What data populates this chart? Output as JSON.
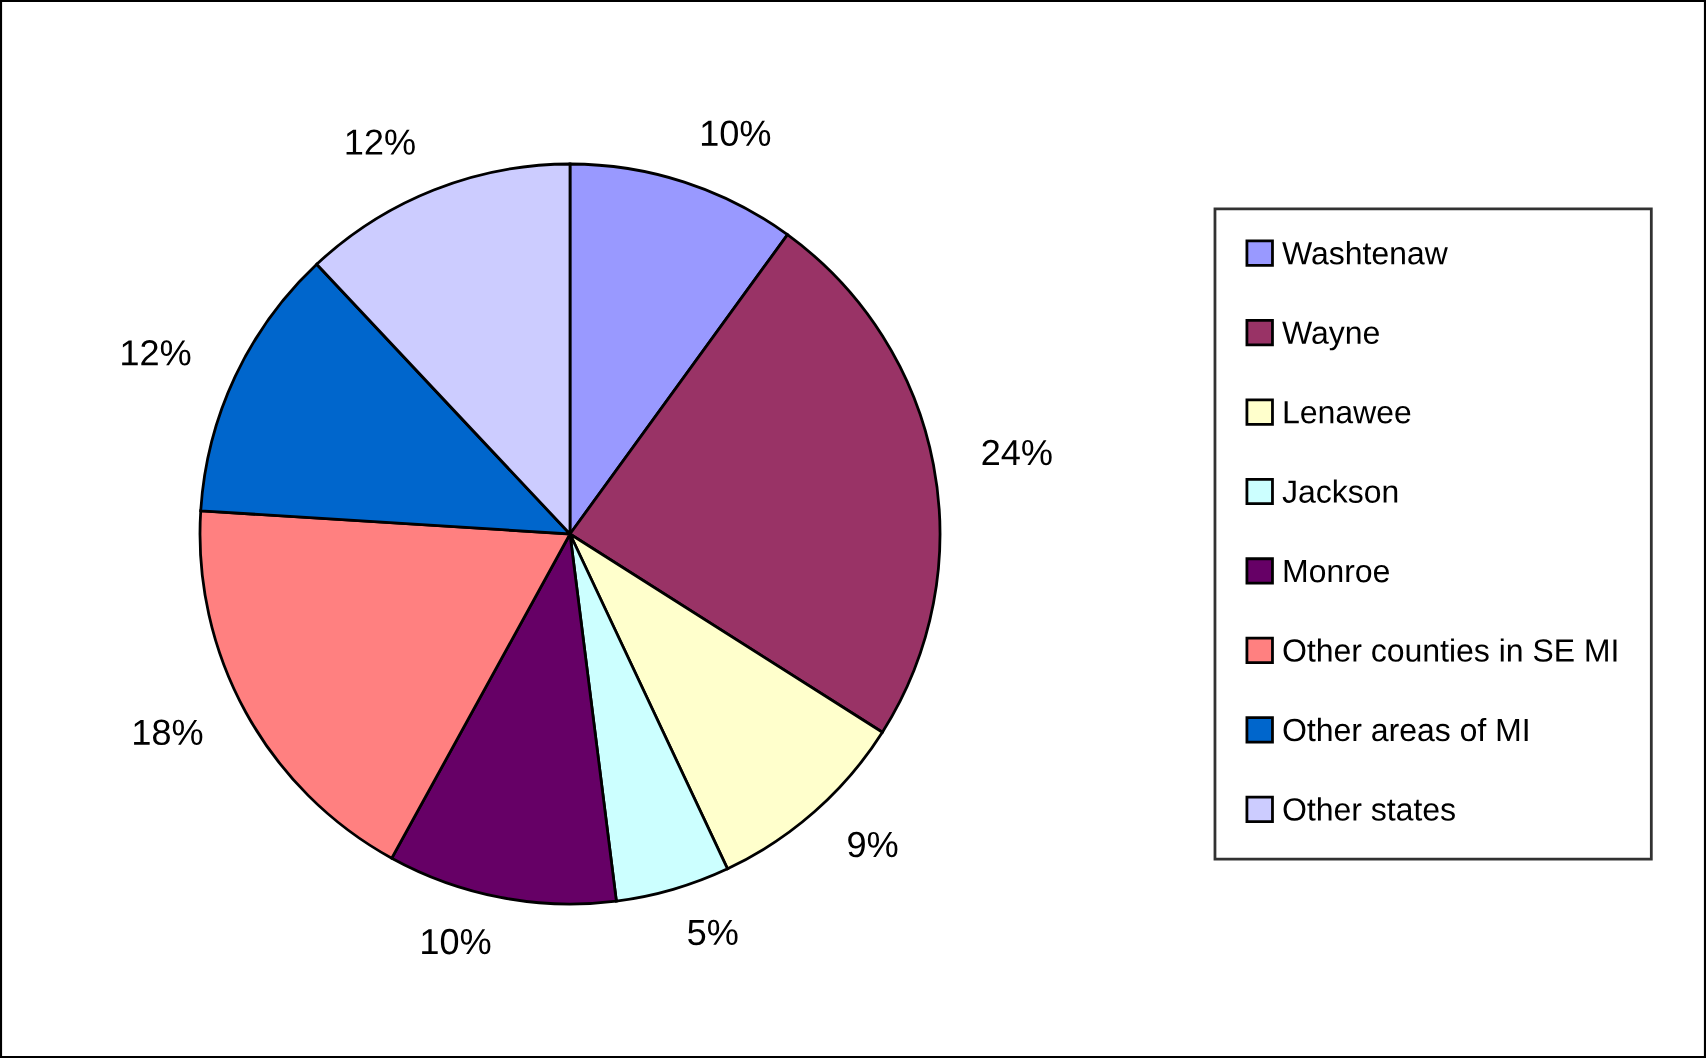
{
  "chart_data": {
    "type": "pie",
    "categories": [
      "Washtenaw",
      "Wayne",
      "Lenawee",
      "Jackson",
      "Monroe",
      "Other counties in SE MI",
      "Other areas of MI",
      "Other states"
    ],
    "values": [
      10,
      24,
      9,
      5,
      10,
      18,
      12,
      12
    ],
    "colors": [
      "#9999ff",
      "#993366",
      "#ffffcc",
      "#ccffff",
      "#660066",
      "#ff8080",
      "#0066cc",
      "#ccccff"
    ],
    "value_labels": [
      "10%",
      "24%",
      "9%",
      "5%",
      "10%",
      "18%",
      "12%",
      "12%"
    ],
    "legend": "right"
  }
}
